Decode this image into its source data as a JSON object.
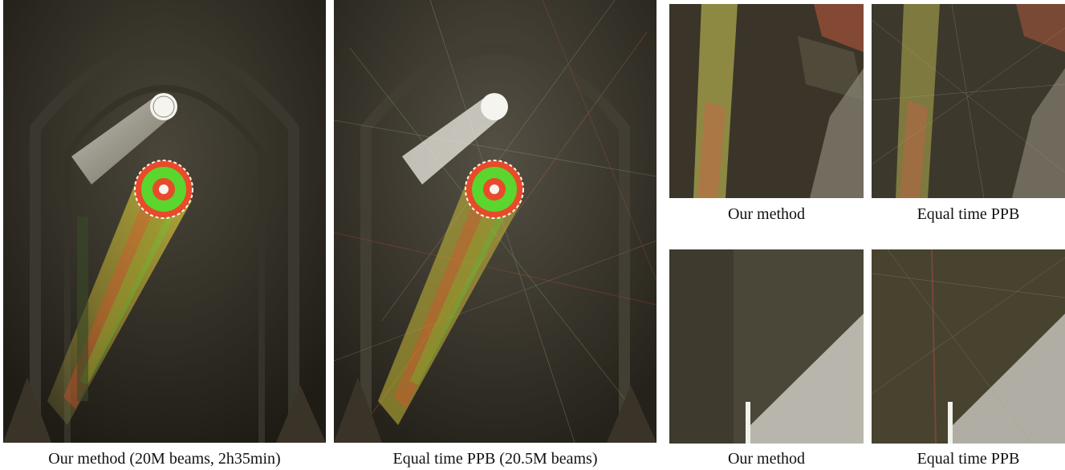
{
  "figure": {
    "panels": [
      {
        "id": "main-ours",
        "caption": "Our method (20M beams, 2h35min)"
      },
      {
        "id": "main-ppb",
        "caption": "Equal time PPB (20.5M beams)"
      },
      {
        "id": "crop-top-ours",
        "caption": "Our method"
      },
      {
        "id": "crop-top-ppb",
        "caption": "Equal time PPB"
      },
      {
        "id": "crop-bottom-ours",
        "caption": "Our method"
      },
      {
        "id": "crop-bottom-ppb",
        "caption": "Equal time PPB"
      }
    ],
    "colors": {
      "background_dark": "#2a271f",
      "beam_white": "#e8e6df",
      "rose_red": "#e84a2a",
      "rose_green": "#5ad62e",
      "rose_yellow": "#d8c83a"
    }
  }
}
